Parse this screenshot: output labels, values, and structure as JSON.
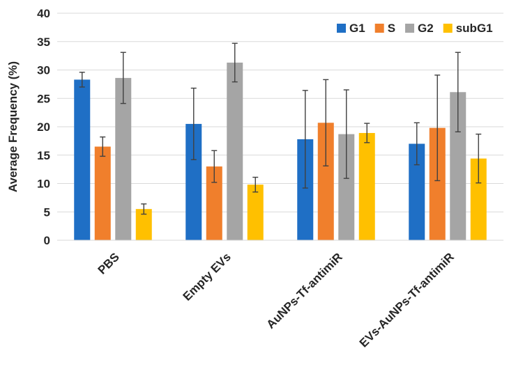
{
  "chart_data": {
    "type": "bar",
    "title": "",
    "xlabel": "",
    "ylabel": "Average Frequency (%)",
    "ylim": [
      0,
      40
    ],
    "yticks": [
      0,
      5,
      10,
      15,
      20,
      25,
      30,
      35,
      40
    ],
    "grid": "horizontal",
    "legend_position": "top-right",
    "categories": [
      "PBS",
      "Empty EVs",
      "AuNPs-Tf-antimiR",
      "EVs-AuNPs-Tf-antimiR"
    ],
    "series": [
      {
        "name": "G1",
        "color": "#1f6fc5",
        "values": [
          28.3,
          20.5,
          17.8,
          17.0
        ],
        "errors": [
          1.3,
          6.3,
          8.6,
          3.7
        ]
      },
      {
        "name": "S",
        "color": "#f07f2c",
        "values": [
          16.5,
          13.0,
          20.7,
          19.8
        ],
        "errors": [
          1.7,
          2.8,
          7.6,
          9.3
        ]
      },
      {
        "name": "G2",
        "color": "#a5a5a5",
        "values": [
          28.6,
          31.3,
          18.7,
          26.1
        ],
        "errors": [
          4.5,
          3.4,
          7.8,
          7.0
        ]
      },
      {
        "name": "subG1",
        "color": "#ffc000",
        "values": [
          5.5,
          9.8,
          18.9,
          14.4
        ],
        "errors": [
          0.9,
          1.3,
          1.7,
          4.3
        ]
      }
    ]
  }
}
